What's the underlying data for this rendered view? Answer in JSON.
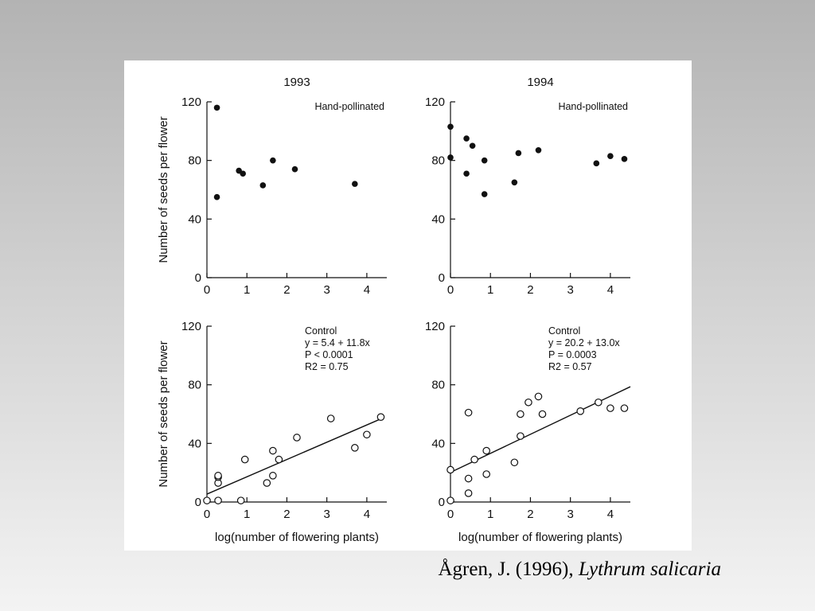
{
  "caption": {
    "author_year": "Ågren, J. (1996),",
    "species": "Lythrum salicaria"
  },
  "colors": {
    "ink": "#111111",
    "panel": "#ffffff"
  },
  "chart_data": [
    {
      "type": "scatter",
      "title": "1993",
      "note": [
        "Hand-pollinated"
      ],
      "xlabel": "",
      "ylabel": "Number of seeds per flower",
      "xlim": [
        0,
        4.5
      ],
      "ylim": [
        0,
        120
      ],
      "xticks": [
        0,
        1,
        2,
        3,
        4
      ],
      "yticks": [
        0,
        40,
        80,
        120
      ],
      "marker": "filled",
      "points": [
        [
          0.25,
          116
        ],
        [
          0.25,
          55
        ],
        [
          0.8,
          73
        ],
        [
          0.9,
          71
        ],
        [
          1.4,
          63
        ],
        [
          1.65,
          80
        ],
        [
          2.2,
          74
        ],
        [
          3.7,
          64
        ]
      ]
    },
    {
      "type": "scatter",
      "title": "1994",
      "note": [
        "Hand-pollinated"
      ],
      "xlabel": "",
      "ylabel": "",
      "xlim": [
        0,
        4.5
      ],
      "ylim": [
        0,
        120
      ],
      "xticks": [
        0,
        1,
        2,
        3,
        4
      ],
      "yticks": [
        0,
        40,
        80,
        120
      ],
      "marker": "filled",
      "points": [
        [
          0,
          103
        ],
        [
          0,
          82
        ],
        [
          0.4,
          95
        ],
        [
          0.55,
          90
        ],
        [
          0.4,
          71
        ],
        [
          0.85,
          80
        ],
        [
          0.85,
          57
        ],
        [
          1.6,
          65
        ],
        [
          1.7,
          85
        ],
        [
          2.2,
          87
        ],
        [
          3.65,
          78
        ],
        [
          4.0,
          83
        ],
        [
          4.35,
          81
        ]
      ]
    },
    {
      "type": "scatter",
      "title": "",
      "note": [
        "Control",
        "y = 5.4 + 11.8x",
        "P < 0.0001",
        "R2 = 0.75"
      ],
      "xlabel": "log(number of flowering plants)",
      "ylabel": "Number of seeds per flower",
      "xlim": [
        0,
        4.5
      ],
      "ylim": [
        0,
        120
      ],
      "xticks": [
        0,
        1,
        2,
        3,
        4
      ],
      "yticks": [
        0,
        40,
        80,
        120
      ],
      "marker": "open",
      "regression": {
        "intercept": 5.4,
        "slope": 11.8,
        "x_range": [
          0,
          4.4
        ]
      },
      "points": [
        [
          0,
          1
        ],
        [
          0.28,
          1
        ],
        [
          0.28,
          13
        ],
        [
          0.28,
          17
        ],
        [
          0.28,
          18
        ],
        [
          0.85,
          1
        ],
        [
          0.95,
          29
        ],
        [
          1.5,
          13
        ],
        [
          1.65,
          35
        ],
        [
          1.65,
          18
        ],
        [
          1.8,
          29
        ],
        [
          2.25,
          44
        ],
        [
          3.1,
          57
        ],
        [
          3.7,
          37
        ],
        [
          4.0,
          46
        ],
        [
          4.35,
          58
        ]
      ]
    },
    {
      "type": "scatter",
      "title": "",
      "note": [
        "Control",
        "y = 20.2 + 13.0x",
        "P = 0.0003",
        "R2 = 0.57"
      ],
      "xlabel": "log(number of flowering plants)",
      "ylabel": "",
      "xlim": [
        0,
        4.5
      ],
      "ylim": [
        0,
        120
      ],
      "xticks": [
        0,
        1,
        2,
        3,
        4
      ],
      "yticks": [
        0,
        40,
        80,
        120
      ],
      "marker": "open",
      "regression": {
        "intercept": 20.2,
        "slope": 13.0,
        "x_range": [
          0,
          4.5
        ]
      },
      "points": [
        [
          0,
          1
        ],
        [
          0,
          22
        ],
        [
          0.45,
          6
        ],
        [
          0.45,
          16
        ],
        [
          0.45,
          61
        ],
        [
          0.6,
          29
        ],
        [
          0.9,
          19
        ],
        [
          0.9,
          35
        ],
        [
          1.6,
          27
        ],
        [
          1.75,
          45
        ],
        [
          1.75,
          60
        ],
        [
          1.95,
          68
        ],
        [
          2.2,
          72
        ],
        [
          2.3,
          60
        ],
        [
          3.25,
          62
        ],
        [
          3.7,
          68
        ],
        [
          4.0,
          64
        ],
        [
          4.35,
          64
        ]
      ]
    }
  ]
}
